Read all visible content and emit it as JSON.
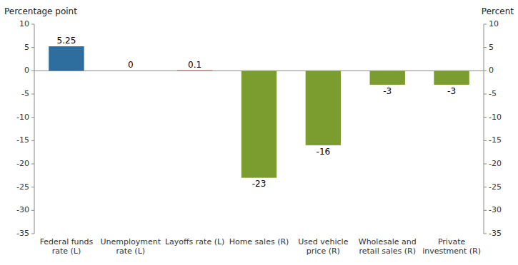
{
  "chart_data": {
    "type": "bar",
    "categories": [
      "Federal funds\nrate (L)",
      "Unemployment\nrate (L)",
      "Layoffs rate (L)",
      "Home sales (R)",
      "Used vehicle\nprice (R)",
      "Wholesale and\nretail sales (R)",
      "Private\ninvestment (R)"
    ],
    "values": [
      5.25,
      0,
      0.1,
      -23,
      -16,
      -3,
      -3
    ],
    "colors": [
      "#2E6E9E",
      "#2E6E9E",
      "#B5413A",
      "#7B9C2E",
      "#7B9C2E",
      "#7B9C2E",
      "#7B9C2E"
    ],
    "data_labels": true,
    "ylabel": "Percentage point",
    "y2label": "Percent",
    "ylim": [
      -35,
      10
    ],
    "yticks": [
      -35,
      -30,
      -25,
      -20,
      -15,
      -10,
      -5,
      0,
      5,
      10
    ],
    "y2lim": [
      -35,
      10
    ],
    "y2ticks": [
      -35,
      -30,
      -25,
      -20,
      -15,
      -10,
      -5,
      0,
      5,
      10
    ],
    "grid": false
  }
}
